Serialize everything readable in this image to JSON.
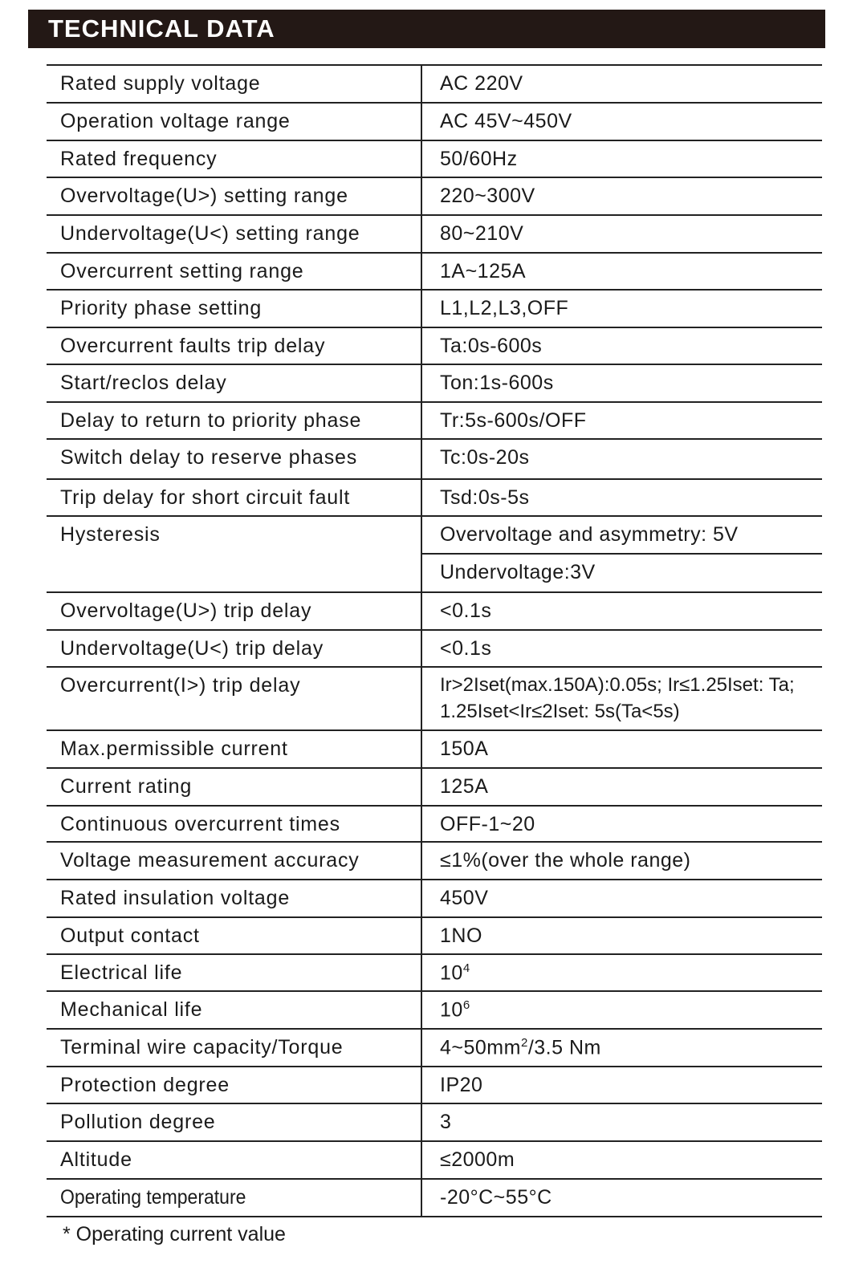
{
  "title": "TECHNICAL DATA",
  "rows": [
    {
      "label": "Rated supply voltage",
      "value": "AC 220V"
    },
    {
      "label": "Operation voltage range",
      "value": "AC 45V~450V"
    },
    {
      "label": "Rated frequency",
      "value": "50/60Hz"
    },
    {
      "label": "Overvoltage(U>) setting range",
      "value": "220~300V"
    },
    {
      "label": "Undervoltage(U<) setting range",
      "value": "80~210V"
    },
    {
      "label": "Overcurrent setting range",
      "value": "1A~125A"
    },
    {
      "label": "Priority phase setting",
      "value": "L1,L2,L3,OFF"
    },
    {
      "label": "Overcurrent faults trip delay",
      "value": "Ta:0s-600s"
    },
    {
      "label": "Start/reclos delay",
      "value": "Ton:1s-600s"
    },
    {
      "label": "Delay to return to priority phase",
      "value": "Tr:5s-600s/OFF"
    },
    {
      "label": "Switch delay to reserve phases",
      "value": "Tc:0s-20s"
    },
    {
      "label": "Trip delay for short circuit fault",
      "value": "Tsd:0s-5s"
    },
    {
      "label": "Hysteresis",
      "value": "Overvoltage and asymmetry: 5V",
      "value2": "Undervoltage:3V"
    },
    {
      "label": "Overvoltage(U>) trip delay",
      "value": "<0.1s"
    },
    {
      "label": "Undervoltage(U<)  trip delay",
      "value": "<0.1s"
    },
    {
      "label": "Overcurrent(I>) trip delay",
      "value": "Ir>2Iset(max.150A):0.05s; Ir≤1.25Iset: Ta;",
      "value2": "1.25Iset<Ir≤2Iset: 5s(Ta<5s)"
    },
    {
      "label": "Max.permissible current",
      "value": "150A"
    },
    {
      "label": "Current rating",
      "value": "125A"
    },
    {
      "label": "Continuous overcurrent times",
      "value": "OFF-1~20"
    },
    {
      "label": "Voltage measurement accuracy",
      "value": "≤1%(over the whole range)"
    },
    {
      "label": "Rated insulation voltage",
      "value": "450V"
    },
    {
      "label": "Output contact",
      "value": "1NO"
    },
    {
      "label": "Electrical life",
      "value": "10",
      "sup": "4"
    },
    {
      "label": "Mechanical life",
      "value": "10",
      "sup": "6"
    },
    {
      "label": "Terminal wire capacity/Torque",
      "value": "4~50mm",
      "sup": "2",
      "suffix": "/3.5 Nm"
    },
    {
      "label": "Protection degree",
      "value": "IP20"
    },
    {
      "label": "Pollution degree",
      "value": "3"
    },
    {
      "label": "Altitude",
      "value": "≤2000m"
    },
    {
      "label": "Operating temperature",
      "value": "-20°C~55°C"
    }
  ],
  "footnote": "* Operating current value"
}
